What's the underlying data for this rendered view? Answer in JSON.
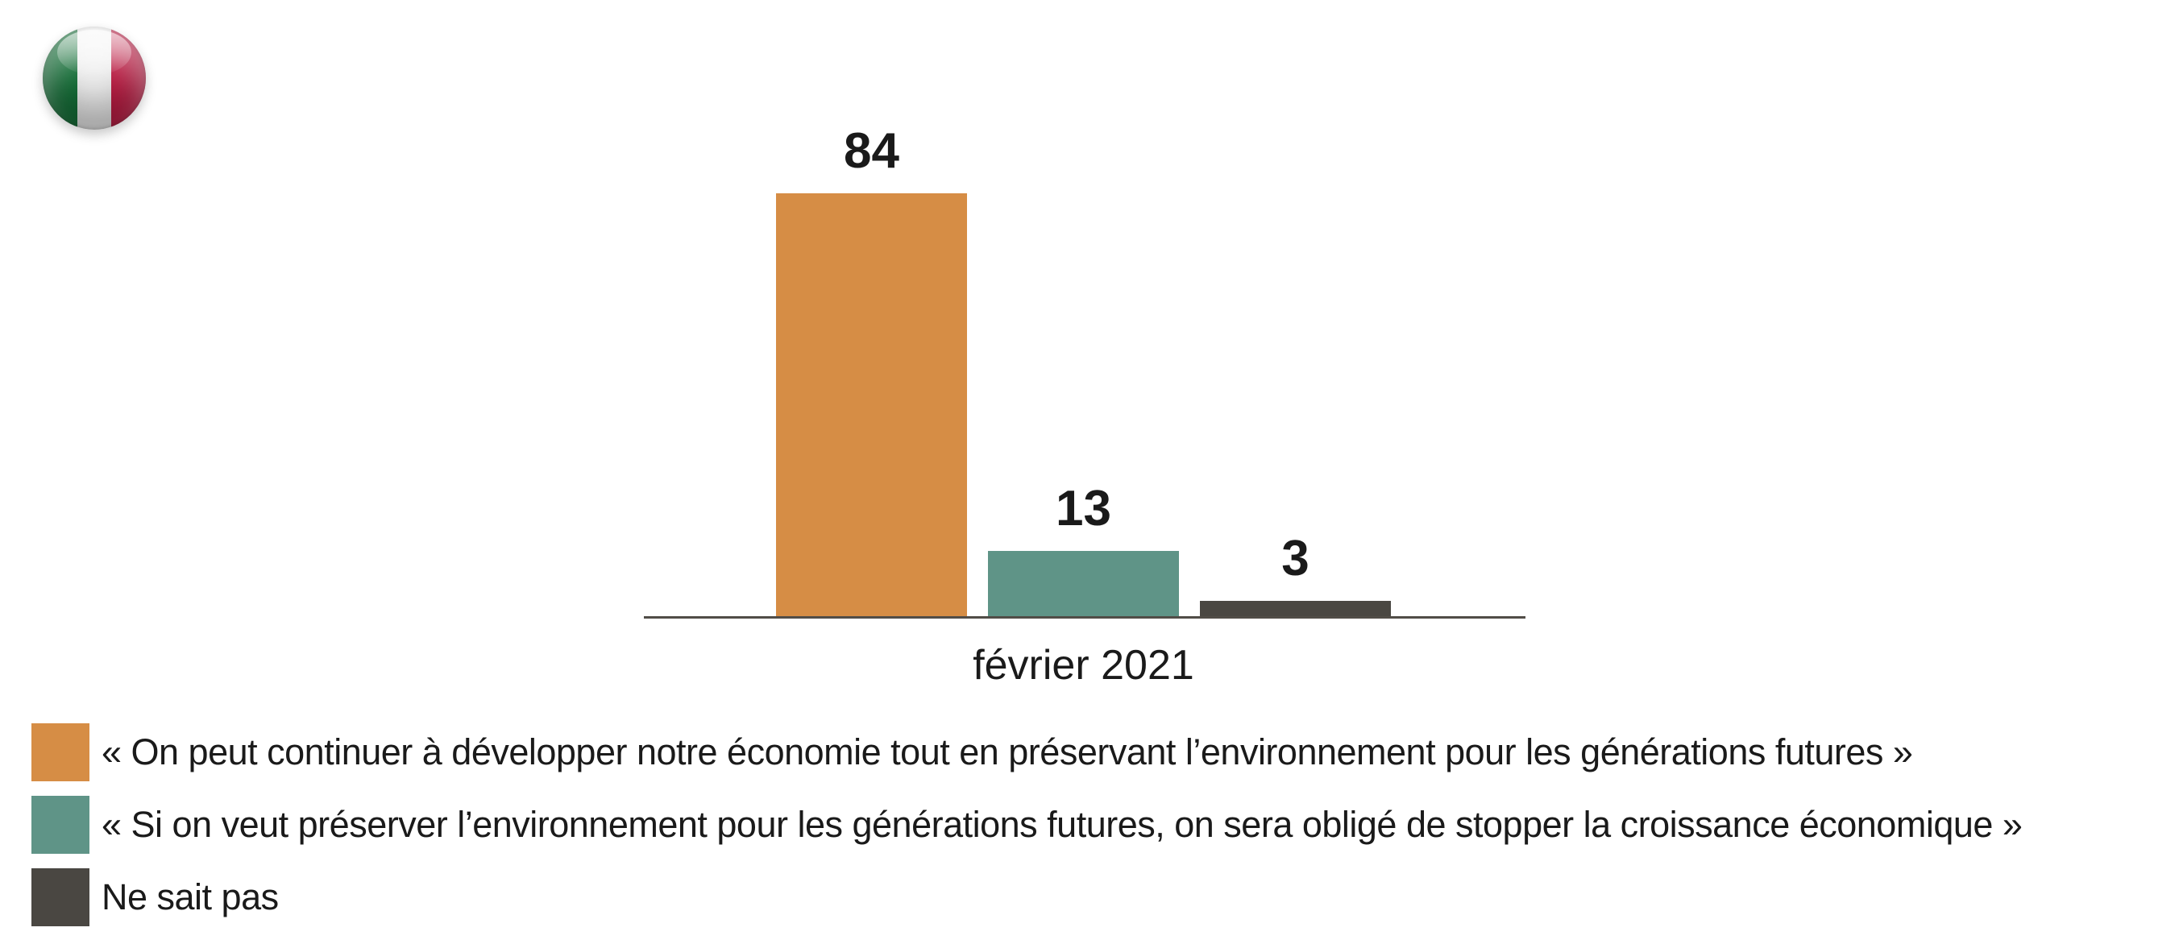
{
  "flag_icon": {
    "name": "italy-flag-icon",
    "colors": {
      "green": "#157239",
      "white": "#f2f2f2",
      "red": "#c01d45"
    }
  },
  "chart_data": {
    "type": "bar",
    "categories": [
      "février 2021"
    ],
    "series": [
      {
        "name": "« On peut continuer à développer notre économie tout en préservant l’environnement pour les générations futures »",
        "values": [
          84
        ],
        "color": "#d68d45"
      },
      {
        "name": "« Si on veut préserver l’environnement pour les générations futures, on sera obligé de stopper la croissance économique »",
        "values": [
          13
        ],
        "color": "#5f9487"
      },
      {
        "name": "Ne sait pas",
        "values": [
          3
        ],
        "color": "#4a4742"
      }
    ],
    "title": "",
    "xlabel": "février 2021",
    "ylabel": "",
    "ylim": [
      0,
      100
    ],
    "grid": false,
    "value_labels": true,
    "legend_position": "bottom-left",
    "axis_color": "#514d47",
    "text_color": "#1a1a1a"
  }
}
